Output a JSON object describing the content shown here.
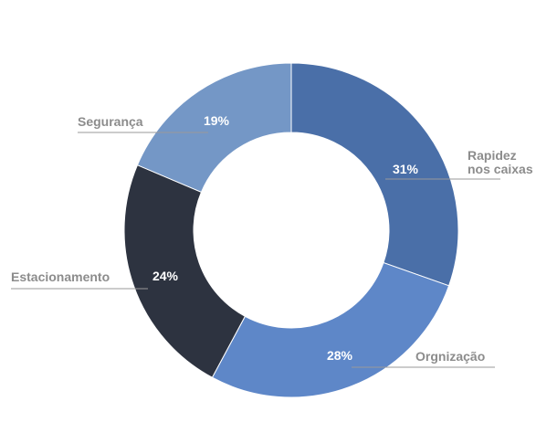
{
  "chart_data": {
    "type": "pie",
    "variant": "donut",
    "categories": [
      "Rapidez nos caixas",
      "Orgnização",
      "Estacionamento",
      "Segurança"
    ],
    "values": [
      31,
      28,
      24,
      19
    ],
    "value_labels": [
      "31%",
      "28%",
      "24%",
      "19%"
    ],
    "label_lines": [
      [
        "Rapidez",
        "nos caixas"
      ],
      [
        "Orgnização"
      ],
      [
        "Estacionamento"
      ],
      [
        "Segurança"
      ]
    ],
    "colors": [
      "#4a6fa8",
      "#5e87c8",
      "#2d3340",
      "#7497c6"
    ],
    "leader_color": "#9a9a9a",
    "label_color": "#8c8c8c",
    "start": "top, clockwise"
  }
}
